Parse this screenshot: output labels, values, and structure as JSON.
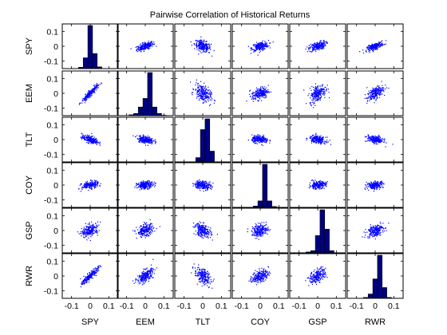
{
  "chart_data": {
    "type": "scatter",
    "subtype": "scatter-matrix",
    "title": "Pairwise Correlation of Historical Returns",
    "variables": [
      "SPY",
      "EEM",
      "TLT",
      "COY",
      "GSP",
      "RWR"
    ],
    "xlim": [
      -0.15,
      0.15
    ],
    "ylim": [
      -0.15,
      0.15
    ],
    "xticks": [
      -0.1,
      0,
      0.1
    ],
    "xtick_labels": [
      "-0.1",
      "0",
      "0.1"
    ],
    "yticks": [
      0.1,
      0,
      -0.1
    ],
    "ytick_labels": [
      "0.1",
      "0",
      "-0.1"
    ],
    "grid": false,
    "point_color": "#0000ff",
    "bar_color": "#000080",
    "histogram_bins": [
      -0.1,
      -0.075,
      -0.05,
      -0.025,
      0,
      0.025,
      0.05,
      0.075,
      0.1
    ],
    "histograms": {
      "SPY": [
        0,
        0,
        0.03,
        0.25,
        1.0,
        0.35,
        0.04,
        0,
        0
      ],
      "EEM": [
        0,
        0.02,
        0.05,
        0.2,
        0.4,
        1.0,
        0.2,
        0.05,
        0.01
      ],
      "TLT": [
        0,
        0,
        0,
        0.1,
        0.75,
        1.0,
        0.25,
        0,
        0
      ],
      "COY": [
        0,
        0,
        0,
        0.03,
        0.15,
        1.0,
        0.15,
        0.02,
        0
      ],
      "GSP": [
        0,
        0,
        0.02,
        0.05,
        0.4,
        1.0,
        0.55,
        0.05,
        0
      ],
      "RWR": [
        0,
        0,
        0.02,
        0.1,
        0.45,
        1.0,
        0.25,
        0.02,
        0
      ]
    },
    "pairs": [
      {
        "row": "SPY",
        "col": "EEM",
        "slope": 0.4,
        "spread": 0.012
      },
      {
        "row": "SPY",
        "col": "TLT",
        "slope": -0.4,
        "spread": 0.018
      },
      {
        "row": "SPY",
        "col": "COY",
        "slope": 0.25,
        "spread": 0.014
      },
      {
        "row": "SPY",
        "col": "GSP",
        "slope": 0.35,
        "spread": 0.014
      },
      {
        "row": "SPY",
        "col": "RWR",
        "slope": 0.45,
        "spread": 0.01
      },
      {
        "row": "EEM",
        "col": "SPY",
        "slope": 1.2,
        "spread": 0.01
      },
      {
        "row": "EEM",
        "col": "TLT",
        "slope": -0.6,
        "spread": 0.028
      },
      {
        "row": "EEM",
        "col": "COY",
        "slope": 0.3,
        "spread": 0.02
      },
      {
        "row": "EEM",
        "col": "GSP",
        "slope": 0.5,
        "spread": 0.028
      },
      {
        "row": "EEM",
        "col": "RWR",
        "slope": 0.75,
        "spread": 0.02
      },
      {
        "row": "TLT",
        "col": "SPY",
        "slope": -0.35,
        "spread": 0.012
      },
      {
        "row": "TLT",
        "col": "EEM",
        "slope": -0.22,
        "spread": 0.012
      },
      {
        "row": "TLT",
        "col": "COY",
        "slope": -0.12,
        "spread": 0.012
      },
      {
        "row": "TLT",
        "col": "GSP",
        "slope": -0.18,
        "spread": 0.012
      },
      {
        "row": "TLT",
        "col": "RWR",
        "slope": -0.22,
        "spread": 0.012
      },
      {
        "row": "COY",
        "col": "SPY",
        "slope": 0.2,
        "spread": 0.012
      },
      {
        "row": "COY",
        "col": "EEM",
        "slope": 0.12,
        "spread": 0.012
      },
      {
        "row": "COY",
        "col": "TLT",
        "slope": -0.12,
        "spread": 0.014
      },
      {
        "row": "COY",
        "col": "GSP",
        "slope": 0.12,
        "spread": 0.012
      },
      {
        "row": "COY",
        "col": "RWR",
        "slope": 0.15,
        "spread": 0.012
      },
      {
        "row": "GSP",
        "col": "SPY",
        "slope": 0.4,
        "spread": 0.02
      },
      {
        "row": "GSP",
        "col": "EEM",
        "slope": 0.25,
        "spread": 0.02
      },
      {
        "row": "GSP",
        "col": "TLT",
        "slope": -0.35,
        "spread": 0.022
      },
      {
        "row": "GSP",
        "col": "COY",
        "slope": 0.2,
        "spread": 0.02
      },
      {
        "row": "GSP",
        "col": "RWR",
        "slope": 0.35,
        "spread": 0.02
      },
      {
        "row": "RWR",
        "col": "SPY",
        "slope": 1.1,
        "spread": 0.012
      },
      {
        "row": "RWR",
        "col": "EEM",
        "slope": 0.6,
        "spread": 0.02
      },
      {
        "row": "RWR",
        "col": "TLT",
        "slope": -0.5,
        "spread": 0.025
      },
      {
        "row": "RWR",
        "col": "COY",
        "slope": 0.35,
        "spread": 0.02
      },
      {
        "row": "RWR",
        "col": "GSP",
        "slope": 0.55,
        "spread": 0.022
      }
    ],
    "points_per_panel": 220
  }
}
